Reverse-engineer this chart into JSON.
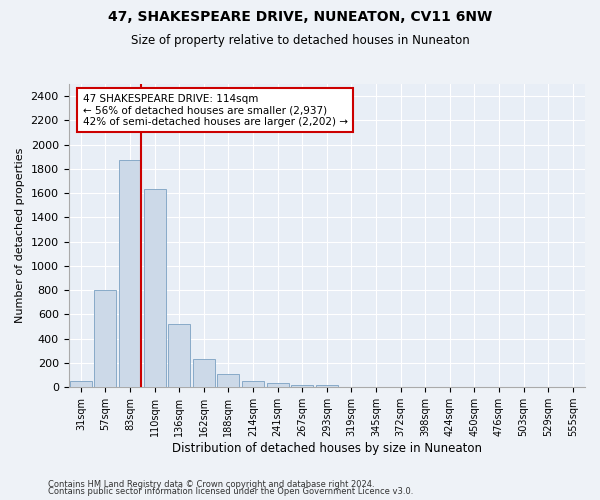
{
  "title": "47, SHAKESPEARE DRIVE, NUNEATON, CV11 6NW",
  "subtitle": "Size of property relative to detached houses in Nuneaton",
  "xlabel": "Distribution of detached houses by size in Nuneaton",
  "ylabel": "Number of detached properties",
  "bin_labels": [
    "31sqm",
    "57sqm",
    "83sqm",
    "110sqm",
    "136sqm",
    "162sqm",
    "188sqm",
    "214sqm",
    "241sqm",
    "267sqm",
    "293sqm",
    "319sqm",
    "345sqm",
    "372sqm",
    "398sqm",
    "424sqm",
    "450sqm",
    "476sqm",
    "503sqm",
    "529sqm",
    "555sqm"
  ],
  "bar_heights": [
    50,
    800,
    1870,
    1635,
    525,
    235,
    105,
    50,
    35,
    22,
    18,
    5,
    2,
    1,
    0,
    0,
    0,
    0,
    0,
    0,
    0
  ],
  "bar_color": "#ccd9e8",
  "bar_edgecolor": "#88aac8",
  "red_line_bin_index": 2,
  "red_line_color": "#cc0000",
  "annotation_line1": "47 SHAKESPEARE DRIVE: 114sqm",
  "annotation_line2": "← 56% of detached houses are smaller (2,937)",
  "annotation_line3": "42% of semi-detached houses are larger (2,202) →",
  "annotation_box_color": "#ffffff",
  "annotation_box_edgecolor": "#cc0000",
  "ylim": [
    0,
    2500
  ],
  "yticks": [
    0,
    200,
    400,
    600,
    800,
    1000,
    1200,
    1400,
    1600,
    1800,
    2000,
    2200,
    2400
  ],
  "footer_line1": "Contains HM Land Registry data © Crown copyright and database right 2024.",
  "footer_line2": "Contains public sector information licensed under the Open Government Licence v3.0.",
  "bg_color": "#eef2f7",
  "plot_bg_color": "#e8eef6"
}
